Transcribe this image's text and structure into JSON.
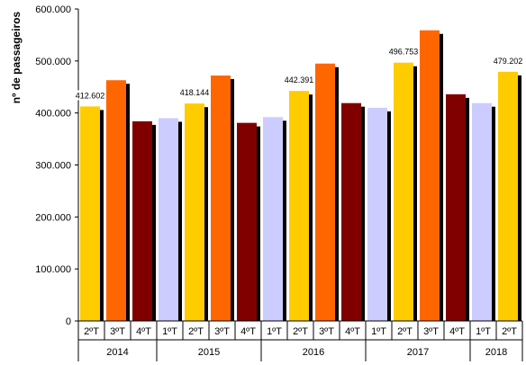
{
  "chart_data": {
    "type": "bar",
    "ylabel": "nº de passageiros",
    "ylim": [
      0,
      600000
    ],
    "yticks": [
      "0",
      "100.000",
      "200.000",
      "300.000",
      "400.000",
      "500.000",
      "600.000"
    ],
    "grid": false,
    "legend": "none",
    "categories": [
      "2ºT",
      "3ºT",
      "4ºT",
      "1ºT",
      "2ºT",
      "3ºT",
      "4ºT",
      "1ºT",
      "2ºT",
      "3ºT",
      "4ºT",
      "1ºT",
      "2ºT",
      "3ºT",
      "4ºT",
      "1ºT",
      "2ºT"
    ],
    "values": [
      412602,
      463000,
      384000,
      390000,
      418144,
      472000,
      381000,
      392000,
      442391,
      495000,
      419000,
      410000,
      496753,
      559000,
      436000,
      419000,
      479202
    ],
    "year_groups": [
      {
        "label": "2014",
        "count": 3
      },
      {
        "label": "2015",
        "count": 4
      },
      {
        "label": "2016",
        "count": 4
      },
      {
        "label": "2017",
        "count": 4
      },
      {
        "label": "2018",
        "count": 2
      }
    ],
    "data_labels": [
      {
        "index": 0,
        "text": "412.602"
      },
      {
        "index": 4,
        "text": "418.144"
      },
      {
        "index": 8,
        "text": "442.391"
      },
      {
        "index": 12,
        "text": "496.753"
      },
      {
        "index": 16,
        "text": "479.202"
      }
    ],
    "quarter_colors": {
      "1ºT": "#ccccff",
      "2ºT": "#ffcc00",
      "3ºT": "#ff6600",
      "4ºT": "#800000"
    },
    "shadow_color": "#000000"
  }
}
